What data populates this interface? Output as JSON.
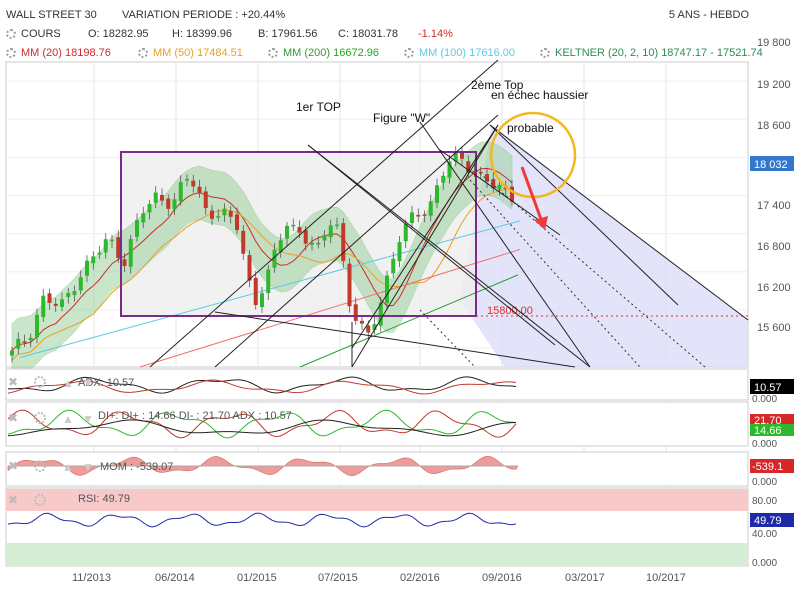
{
  "header": {
    "instrument": "WALL STREET 30",
    "variation": "VARIATION PERIODE : +20.44%",
    "period": "5 ANS - HEBDO",
    "ohlc_label": "COURS",
    "open": "O: 18282.95",
    "high": "H: 18399.96",
    "low": "B: 17961.56",
    "close": "C: 18031.78",
    "close_change": "-1.14%",
    "ma20": "MM (20) 18198.76",
    "ma50": "MM (50) 17484.51",
    "ma200": "MM (200) 16672.96",
    "ma100": "MM (100) 17616.00",
    "keltner": "KELTNER (20, 2, 10)",
    "keltner_vals": "18747.17 - 17521.74"
  },
  "colors": {
    "ma20": "#d62728",
    "ma50": "#e8a020",
    "ma200": "#2ca02c",
    "ma100": "#5bc8e8",
    "keltner": "#2e8b57",
    "up": "#2db82d",
    "down": "#c0392b",
    "rect": "#7b2a8c",
    "price_tag": "#3377cc",
    "rsi_band": "#f7c9c9",
    "rsi_low_band": "#d5ecd5"
  },
  "annotations": {
    "top1": "1er TOP",
    "figure_w": "Figure \"W\"",
    "top2_line1": "2ème Top",
    "top2_line2": "en échec haussier",
    "probable": "probable",
    "level": "15800.00"
  },
  "price_axis": {
    "ticks": [
      "19 800",
      "19 200",
      "18 600",
      "18 032",
      "17 400",
      "16 800",
      "16 200",
      "15 600"
    ],
    "current_price": "18 032"
  },
  "x_axis": {
    "ticks": [
      "11/2013",
      "06/2014",
      "01/2015",
      "07/2015",
      "02/2016",
      "09/2016",
      "03/2017",
      "10/2017"
    ]
  },
  "adx": {
    "label": "ADX: 10.57",
    "value_tag": "10.57",
    "axis_zero": "0.000"
  },
  "dmi": {
    "label": "DI+: DI+ : 14.66 DI- : 21.70 ADX : 10.57",
    "tag_top": "21.70",
    "tag_bottom": "14.66",
    "axis_zero": "0.000"
  },
  "momentum": {
    "label": "MOM : -539.07",
    "value_tag": "-539.1",
    "axis_zero": "0.000"
  },
  "rsi": {
    "label": "RSI: 49.79",
    "value_tag": "49.79",
    "axis_ticks": [
      "80.00",
      "40.00",
      "0.000"
    ]
  },
  "chart_data": {
    "type": "candlestick",
    "title": "WALL STREET 30",
    "ylim": [
      15300,
      20100
    ],
    "x": [
      "11/2013",
      "06/2014",
      "01/2015",
      "07/2015",
      "02/2016",
      "09/2016"
    ],
    "close_path": [
      15500,
      15800,
      16400,
      16200,
      16700,
      17000,
      17300,
      17000,
      17700,
      18000,
      17900,
      18300,
      17800,
      17700,
      17500,
      16300,
      16800,
      17600,
      17400,
      17100,
      17800,
      16200,
      15700,
      16500,
      17300,
      17700,
      17900,
      18500,
      18600,
      18300,
      18100,
      18032
    ],
    "levels": {
      "horizontal_dashed": 15800,
      "rect_top": 18000,
      "rect_bottom": 15750
    }
  }
}
